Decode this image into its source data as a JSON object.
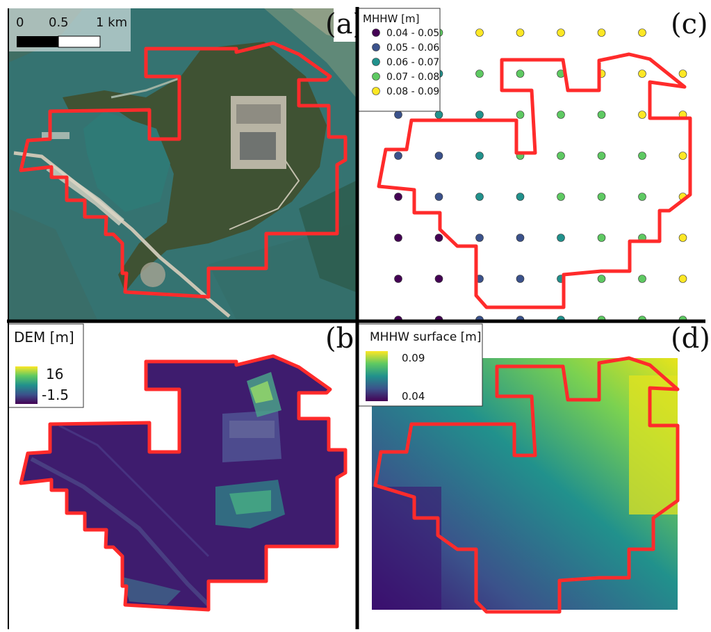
{
  "panels": {
    "a": {
      "letter": "(a)"
    },
    "b": {
      "letter": "(b)"
    },
    "c": {
      "letter": "(c)"
    },
    "d": {
      "letter": "(d)"
    }
  },
  "scalebar": {
    "ticks": [
      "0",
      "0.5",
      "1 km"
    ]
  },
  "dem_legend": {
    "title": "DEM [m]",
    "max": "16",
    "min": "-1.5"
  },
  "mhhw_points_legend": {
    "title": "MHHW [m]",
    "classes": [
      {
        "label": "0.04 - 0.05",
        "color": "#440154"
      },
      {
        "label": "0.05 - 0.06",
        "color": "#3b528b"
      },
      {
        "label": "0.06 - 0.07",
        "color": "#21918c"
      },
      {
        "label": "0.07 - 0.08",
        "color": "#5ec962"
      },
      {
        "label": "0.08 - 0.09",
        "color": "#fde725"
      }
    ]
  },
  "mhhw_surface_legend": {
    "title": "MHHW surface [m]",
    "max": "0.09",
    "min": "0.04"
  },
  "colors": {
    "boundary": "#ff2b2b",
    "viridis_dark": "#440154",
    "viridis_light": "#fde725"
  },
  "point_grid_classes": [
    [
      3,
      3,
      4,
      4,
      4,
      4,
      4,
      4
    ],
    [
      2,
      2,
      3,
      3,
      3,
      4,
      4,
      4
    ],
    [
      1,
      2,
      2,
      3,
      3,
      3,
      4,
      4
    ],
    [
      1,
      1,
      2,
      3,
      3,
      3,
      3,
      4
    ],
    [
      0,
      1,
      2,
      2,
      3,
      3,
      3,
      4
    ],
    [
      0,
      0,
      1,
      1,
      2,
      3,
      3,
      4
    ],
    [
      0,
      0,
      1,
      1,
      2,
      3,
      3,
      4
    ],
    [
      0,
      0,
      1,
      1,
      2,
      3,
      3,
      3
    ]
  ]
}
